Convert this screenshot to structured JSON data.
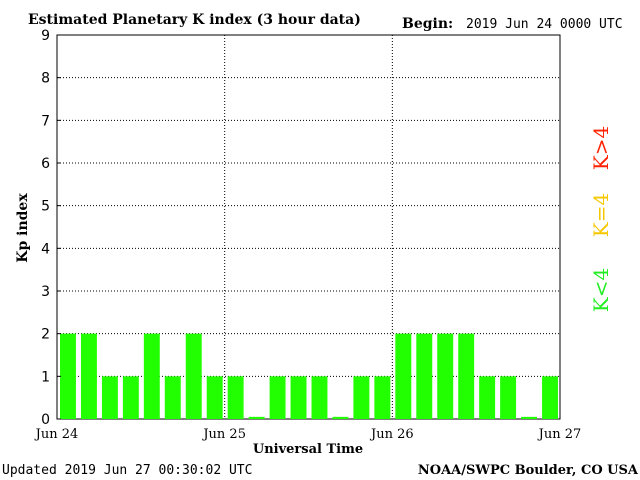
{
  "header": {
    "title": "Estimated Planetary K index (3 hour data)",
    "begin_label": "Begin:",
    "begin_value": "2019 Jun 24 0000 UTC"
  },
  "footer": {
    "updated": "Updated 2019 Jun 27 00:30:02 UTC",
    "source": "NOAA/SWPC Boulder, CO USA"
  },
  "legend": [
    {
      "label": "K<4",
      "color": "#22ee22"
    },
    {
      "label": "K=4",
      "color": "#f5c800"
    },
    {
      "label": "K>4",
      "color": "#ff2200"
    }
  ],
  "chart_data": {
    "type": "bar",
    "ylabel": "Kp index",
    "xlabel": "Universal Time",
    "ylim": [
      0,
      9
    ],
    "yticks": [
      0,
      1,
      2,
      3,
      4,
      5,
      6,
      7,
      8,
      9
    ],
    "xticks": [
      "Jun 24",
      "Jun 25",
      "Jun 26",
      "Jun 27"
    ],
    "grid": true,
    "bar_color": "#22ff00",
    "values": [
      2,
      2,
      1,
      1,
      2,
      1,
      2,
      1,
      1,
      0.05,
      1,
      1,
      1,
      0.05,
      1,
      1,
      2,
      2,
      2,
      2,
      1,
      1,
      0.05,
      1
    ]
  }
}
